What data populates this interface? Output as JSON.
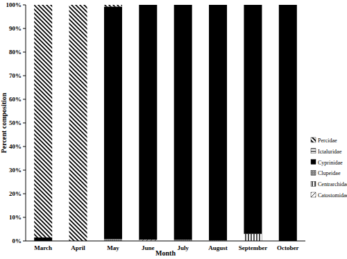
{
  "chart_data": {
    "type": "bar",
    "stacked": true,
    "grid": false,
    "legend": "right",
    "xlabel": "Month",
    "ylabel": "Percent composition",
    "categories": [
      "March",
      "April",
      "May",
      "June",
      "July",
      "August",
      "September",
      "October"
    ],
    "ylim": [
      0,
      100
    ],
    "yticks": [
      {
        "value": 0,
        "label": "0%"
      },
      {
        "value": 10,
        "label": "10%"
      },
      {
        "value": 20,
        "label": "20%"
      },
      {
        "value": 30,
        "label": "30%"
      },
      {
        "value": 40,
        "label": "40%"
      },
      {
        "value": 50,
        "label": "50%"
      },
      {
        "value": 60,
        "label": "60%"
      },
      {
        "value": 70,
        "label": "70%"
      },
      {
        "value": 80,
        "label": "80%"
      },
      {
        "value": 90,
        "label": "90%"
      },
      {
        "value": 100,
        "label": "100%"
      }
    ],
    "series": [
      {
        "name": "Percidae",
        "color": "#000000",
        "values": [
          98.5,
          100,
          0.7,
          0,
          0,
          0,
          0,
          0
        ]
      },
      {
        "name": "Ictaluridae",
        "color": "#000000",
        "values": [
          0,
          0,
          0,
          0,
          0,
          0,
          0,
          0
        ]
      },
      {
        "name": "Cyprinidae",
        "color": "#000000",
        "values": [
          1.5,
          0,
          98.5,
          99.5,
          99.5,
          99.7,
          97,
          100
        ]
      },
      {
        "name": "Clupeidae",
        "color": "#808080",
        "values": [
          0,
          0,
          0.8,
          0,
          0.5,
          0.3,
          0,
          0
        ]
      },
      {
        "name": "Centrarchidae",
        "color": "#000000",
        "values": [
          0,
          0,
          0,
          0,
          0,
          0,
          3,
          0
        ]
      },
      {
        "name": "Catostomidae",
        "color": "#000000",
        "values": [
          0,
          0,
          0,
          0.5,
          0,
          0,
          0,
          0
        ]
      }
    ]
  }
}
